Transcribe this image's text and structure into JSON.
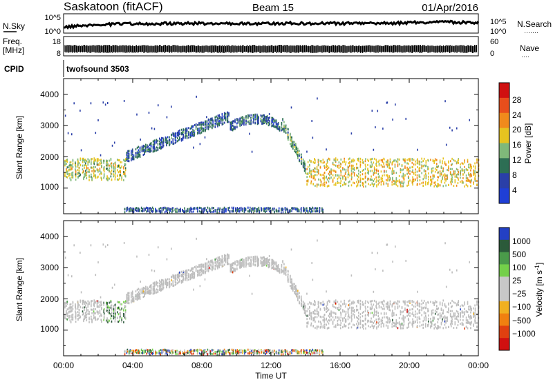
{
  "header": {
    "site": "Saskatoon (fitACF)",
    "beam": "Beam 15",
    "date": "01/Apr/2016"
  },
  "nsky_panel": {
    "left_label": "N.Sky",
    "left_ticks": [
      "10^5",
      "10^0"
    ],
    "right_ticks": [
      "10^5",
      "10^0"
    ],
    "right_label": "N.Search",
    "right_label_line": "·······"
  },
  "freq_panel": {
    "left_label_line1": "Freq.",
    "left_label_line2": "[MHz]",
    "left_ticks": [
      "18",
      "8"
    ],
    "right_ticks": [
      "60",
      "0"
    ],
    "right_label": "Nave",
    "right_label_line": "····"
  },
  "cpid_panel": {
    "label": "CPID",
    "program": "twofsound 3503"
  },
  "power_panel": {
    "ylabel": "Slant Range [km]",
    "yticks": [
      "4000",
      "3000",
      "2000",
      "1000"
    ],
    "colorbar_title": "Power [dB]",
    "colorbar_ticks": [
      "28",
      "24",
      "20",
      "16",
      "12",
      "8",
      "4"
    ]
  },
  "velocity_panel": {
    "ylabel": "Slant Range [km]",
    "yticks": [
      "4000",
      "3000",
      "2000",
      "1000"
    ],
    "colorbar_title": "Velocity [m s",
    "colorbar_title_sup": "-1",
    "colorbar_title_end": "]",
    "colorbar_ticks": [
      "1000",
      "500",
      "100",
      "25",
      "−25",
      "−100",
      "−500",
      "−1000"
    ]
  },
  "xaxis": {
    "label": "Time UT",
    "ticks": [
      "00:00",
      "04:00",
      "08:00",
      "12:00",
      "16:00",
      "20:00",
      "00:00"
    ]
  },
  "colors": {
    "power_scale": [
      "#1f3fd6",
      "#2a3fa8",
      "#2d6e54",
      "#7fb87a",
      "#e6c320",
      "#f08a1c",
      "#e84e1c",
      "#d01010"
    ],
    "velocity_scale": [
      "#2340c4",
      "#2b5a3a",
      "#4a9a4a",
      "#74d04a",
      "#c8c8c8",
      "#c8c8c8",
      "#f0b020",
      "#f08010",
      "#e04010",
      "#d01010"
    ],
    "ground_scatter": "#bdbdbd"
  },
  "chart_data": {
    "type": "heatmap",
    "x_range_hours": [
      0,
      24
    ],
    "y_range_km": [
      180,
      4500
    ],
    "power_db_range": [
      0,
      30
    ],
    "velocity_range": [
      -1200,
      1200
    ],
    "scatter_regions": [
      {
        "name": "morning_band",
        "x": [
          0.0,
          3.6
        ],
        "y_center": 1600,
        "y_width": 700,
        "power_db": 14
      },
      {
        "name": "rising_arc",
        "x": [
          3.6,
          9.6
        ],
        "y_start": 2000,
        "y_end": 3300,
        "power_db": 6
      },
      {
        "name": "noon_arc",
        "x": [
          9.6,
          12.6
        ],
        "y_center": 3200,
        "power_db": 7
      },
      {
        "name": "falling_arc",
        "x": [
          12.6,
          14.0
        ],
        "y_start": 3100,
        "y_end": 1600,
        "power_db": 10
      },
      {
        "name": "evening_band",
        "x": [
          14.0,
          24.0
        ],
        "y_center": 1500,
        "y_width": 900,
        "power_db": 16
      },
      {
        "name": "near_range",
        "x": [
          3.5,
          15.0
        ],
        "y_center": 300,
        "y_width": 150,
        "power_db": 6
      }
    ]
  }
}
